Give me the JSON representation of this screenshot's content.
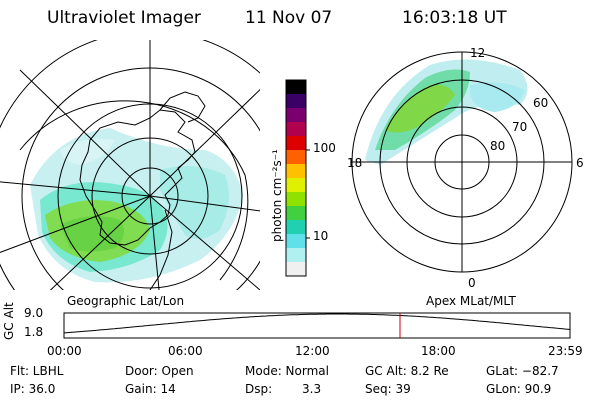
{
  "header": {
    "instrument": "Ultraviolet Imager",
    "date": "11 Nov 07",
    "time": "16:03:18 UT"
  },
  "colorbar": {
    "label": "photon cm⁻²s⁻¹",
    "ticks": [
      "100",
      "10"
    ],
    "colors": [
      "#000000",
      "#3a0066",
      "#7a0070",
      "#b0004e",
      "#dd0000",
      "#ff6000",
      "#ffc000",
      "#e0f000",
      "#90e000",
      "#40d040",
      "#20d0b0",
      "#60e0e8",
      "#b0f0f0",
      "#f0f0f0"
    ]
  },
  "left_map": {
    "caption": "Geographic Lat/Lon"
  },
  "right_map": {
    "caption": "Apex MLat/MLT",
    "lat_labels": [
      "60",
      "70",
      "80"
    ],
    "mlt_labels": {
      "top": "12",
      "left": "18",
      "right": "6",
      "bottom": "0"
    }
  },
  "altitude_plot": {
    "axis_label": "GC Alt",
    "y_ticks": [
      "9.0",
      "1.8"
    ],
    "x_ticks": [
      "00:00",
      "06:00",
      "12:00",
      "18:00",
      "23:59"
    ],
    "marker_color": "#cc0000"
  },
  "status": {
    "flt": "Flt: LBHL",
    "door": "Door: Open",
    "mode": "Mode: Normal",
    "gc_alt": "GC Alt: 8.2 Re",
    "glat": "GLat: −82.7",
    "ip": "IP: 36.0",
    "gain": "Gain: 14",
    "dsp_label": "Dsp:",
    "dsp_value": "3.3",
    "seq": "Seq: 39",
    "glon": "GLon:  90.9"
  }
}
